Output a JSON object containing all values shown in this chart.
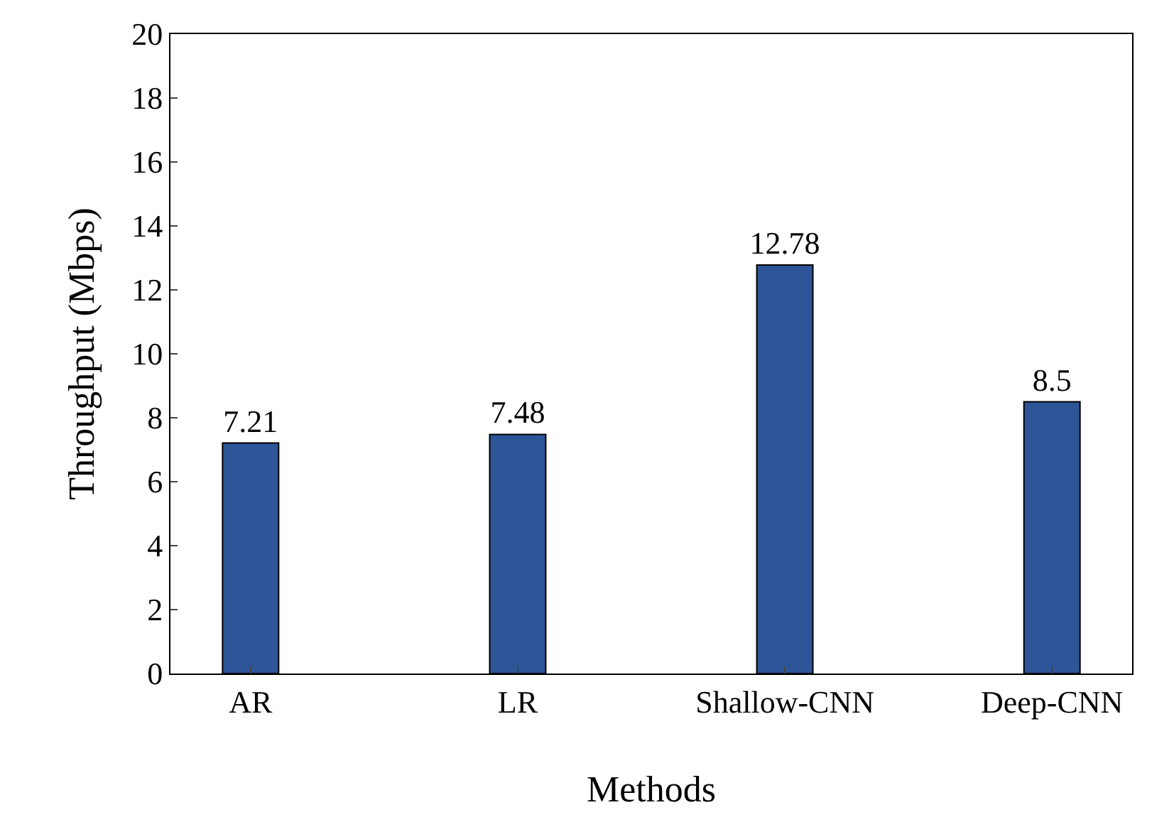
{
  "chart_data": {
    "type": "bar",
    "xlabel": "Methods",
    "ylabel": "Throughput (Mbps)",
    "categories": [
      "AR",
      "LR",
      "Shallow-CNN",
      "Deep-CNN"
    ],
    "values": [
      7.21,
      7.48,
      12.78,
      8.5
    ],
    "color": "#2e5597",
    "ylim": [
      0,
      20
    ],
    "yticks": [
      0,
      2,
      4,
      6,
      8,
      10,
      12,
      14,
      16,
      18,
      20
    ],
    "legend": false,
    "data_labels": true
  }
}
